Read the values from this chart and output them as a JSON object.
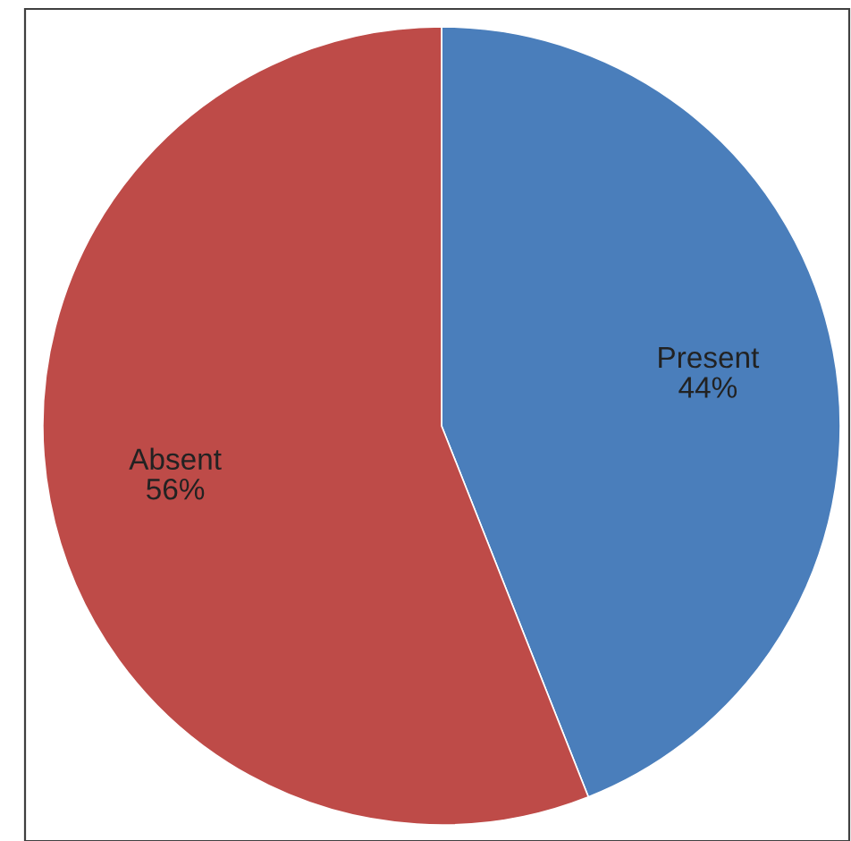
{
  "chart_data": {
    "type": "pie",
    "categories": [
      "Present",
      "Absent"
    ],
    "values": [
      44,
      56
    ],
    "colors": [
      "#4a7ebb",
      "#be4b48"
    ],
    "value_labels": [
      "44%",
      "56%"
    ]
  }
}
